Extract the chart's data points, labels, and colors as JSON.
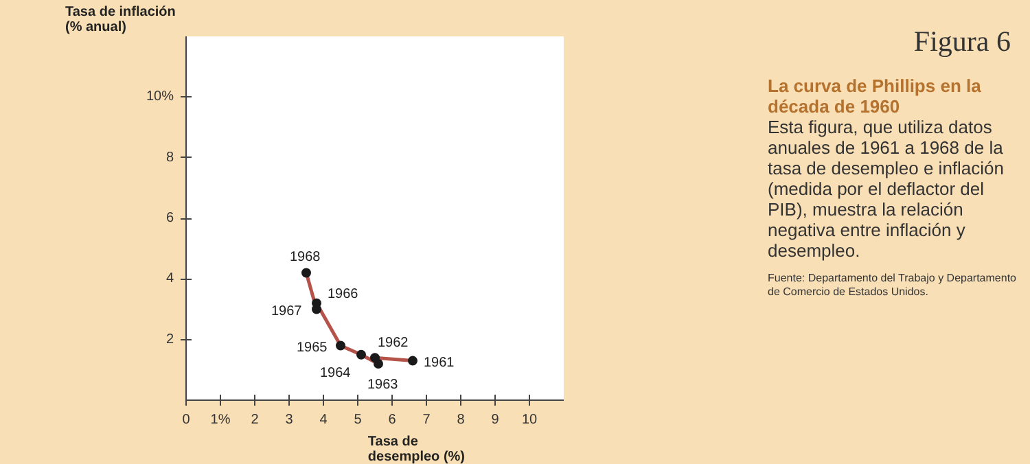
{
  "chart_data": {
    "type": "line",
    "title": "La curva de Phillips en la década de 1960",
    "subtitle": "Esta figura, que utiliza datos anuales de 1961 a 1968 de la tasa de desempleo e inflación (medida por el deflactor del PIB), muestra la relación negativa entre inflación y desempleo.",
    "xlabel": "Tasa de\ndesempleo (%)",
    "ylabel": "Tasa de inflación\n(% anual)",
    "x": [
      6.6,
      5.5,
      5.6,
      5.1,
      4.5,
      3.8,
      3.8,
      3.5
    ],
    "series": [
      {
        "type": "line",
        "marker": "none",
        "color": "#b5524a",
        "values": [
          1.3,
          1.4,
          1.2,
          1.5,
          1.8,
          3.2,
          3.0,
          4.2
        ]
      },
      {
        "type": "scatter",
        "marker": "circle",
        "color": "#1a1a1a",
        "values": [
          1.3,
          1.4,
          1.2,
          1.5,
          1.8,
          3.2,
          3.0,
          4.2
        ]
      }
    ],
    "xlim": [
      0,
      11
    ],
    "ylim": [
      0,
      12
    ],
    "xticks": [
      0,
      {
        "value": 1,
        "label": "1%"
      },
      2,
      3,
      4,
      5,
      6,
      7,
      8,
      9,
      10
    ],
    "yticks": [
      2,
      4,
      6,
      8,
      {
        "value": 10,
        "label": "10%"
      }
    ],
    "grid": false,
    "line_style": "solid",
    "annotations": [
      {
        "text": "1961",
        "x": 6.6,
        "y": 1.3
      },
      {
        "text": "1962",
        "x": 5.5,
        "y": 1.4
      },
      {
        "text": "1963",
        "x": 5.6,
        "y": 1.2
      },
      {
        "text": "1964",
        "x": 5.1,
        "y": 1.5
      },
      {
        "text": "1965",
        "x": 4.5,
        "y": 1.8
      },
      {
        "text": "1966",
        "x": 3.8,
        "y": 3.2
      },
      {
        "text": "1967",
        "x": 3.8,
        "y": 3.0
      },
      {
        "text": "1968",
        "x": 3.5,
        "y": 4.2
      },
      "Figura 6",
      "Fuente: Departamento del Trabajo y Departamento de Comercio de Estados Unidos."
    ]
  }
}
